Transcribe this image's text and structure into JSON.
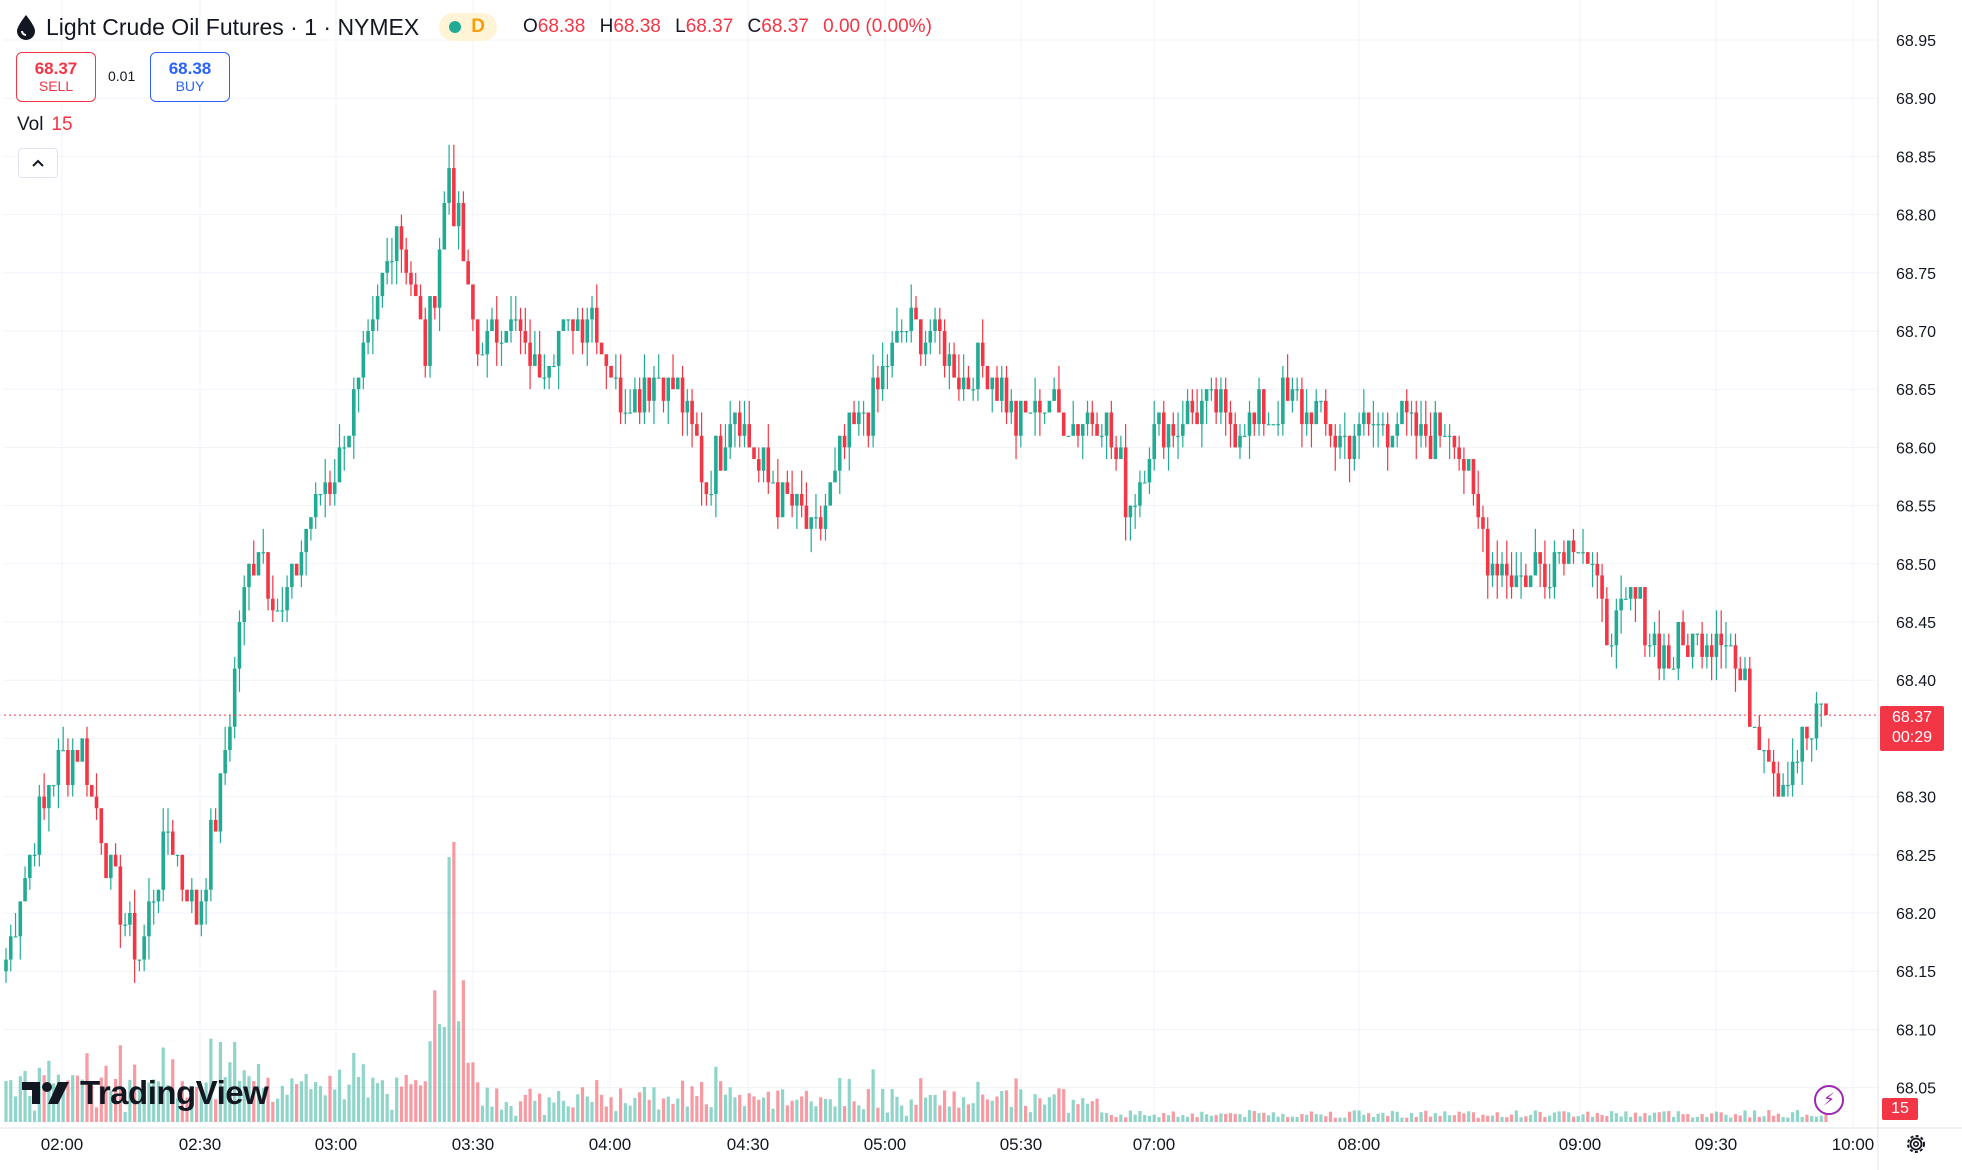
{
  "header": {
    "symbol_title": "Light Crude Oil Futures · 1 · NYMEX",
    "interval_badge": "D",
    "ohlc": {
      "o_label": "O",
      "o_value": "68.38",
      "h_label": "H",
      "h_value": "68.38",
      "l_label": "L",
      "l_value": "68.37",
      "c_label": "C",
      "c_value": "68.37",
      "change": "0.00 (0.00%)"
    }
  },
  "trade": {
    "sell_price": "68.37",
    "sell_label": "SELL",
    "spread": "0.01",
    "buy_price": "68.38",
    "buy_label": "BUY"
  },
  "volume_legend": {
    "label": "Vol",
    "value": "15"
  },
  "logo_text": "TradingView",
  "last_price": {
    "price": "68.37",
    "countdown": "00:29"
  },
  "volume_badge": "15",
  "colors": {
    "up": "#22ab94",
    "down": "#f23645",
    "grid": "#f0f3fa",
    "text": "#131722"
  },
  "icons": [
    "droplet-icon",
    "chevron-up-icon",
    "lightning-icon",
    "gear-icon",
    "tradingview-logo-icon"
  ],
  "chart_data": {
    "type": "candlestick",
    "y_axis": {
      "min": 68.0,
      "max": 68.97,
      "ticks": [
        "68.05",
        "68.10",
        "68.15",
        "68.20",
        "68.25",
        "68.30",
        "68.35",
        "68.40",
        "68.45",
        "68.50",
        "68.55",
        "68.60",
        "68.65",
        "68.70",
        "68.75",
        "68.80",
        "68.85",
        "68.90",
        "68.95"
      ]
    },
    "x_axis": {
      "ticks": [
        "02:00",
        "02:30",
        "03:00",
        "03:30",
        "04:00",
        "04:30",
        "05:00",
        "05:30",
        "07:00",
        "08:00",
        "09:00",
        "09:30",
        "10:00"
      ]
    },
    "last_price": 68.37,
    "grid": true,
    "price_anchors": [
      [
        0,
        68.16
      ],
      [
        6,
        68.27
      ],
      [
        11,
        68.33
      ],
      [
        16,
        68.34
      ],
      [
        22,
        68.23
      ],
      [
        28,
        68.16
      ],
      [
        34,
        68.27
      ],
      [
        40,
        68.2
      ],
      [
        45,
        68.3
      ],
      [
        49,
        68.45
      ],
      [
        53,
        68.52
      ],
      [
        58,
        68.45
      ],
      [
        64,
        68.54
      ],
      [
        70,
        68.59
      ],
      [
        76,
        68.68
      ],
      [
        82,
        68.8
      ],
      [
        88,
        68.68
      ],
      [
        93,
        68.84
      ],
      [
        99,
        68.68
      ],
      [
        105,
        68.71
      ],
      [
        111,
        68.67
      ],
      [
        117,
        68.7
      ],
      [
        123,
        68.72
      ],
      [
        129,
        68.64
      ],
      [
        135,
        68.66
      ],
      [
        141,
        68.65
      ],
      [
        147,
        68.57
      ],
      [
        153,
        68.64
      ],
      [
        158,
        68.58
      ],
      [
        164,
        68.55
      ],
      [
        170,
        68.52
      ],
      [
        176,
        68.6
      ],
      [
        182,
        68.64
      ],
      [
        188,
        68.7
      ],
      [
        194,
        68.7
      ],
      [
        200,
        68.66
      ],
      [
        206,
        68.67
      ],
      [
        212,
        68.62
      ],
      [
        218,
        68.64
      ],
      [
        224,
        68.62
      ],
      [
        230,
        68.63
      ],
      [
        236,
        68.55
      ],
      [
        242,
        68.62
      ],
      [
        250,
        68.63
      ],
      [
        260,
        68.62
      ],
      [
        270,
        68.64
      ],
      [
        280,
        68.61
      ],
      [
        290,
        68.62
      ],
      [
        298,
        68.61
      ],
      [
        304,
        68.62
      ],
      [
        308,
        68.55
      ],
      [
        312,
        68.5
      ],
      [
        318,
        68.49
      ],
      [
        324,
        68.5
      ],
      [
        330,
        68.53
      ],
      [
        336,
        68.44
      ],
      [
        342,
        68.47
      ],
      [
        348,
        68.42
      ],
      [
        354,
        68.43
      ],
      [
        360,
        68.45
      ],
      [
        366,
        68.38
      ],
      [
        372,
        68.32
      ],
      [
        378,
        68.35
      ],
      [
        382,
        68.37
      ]
    ]
  }
}
